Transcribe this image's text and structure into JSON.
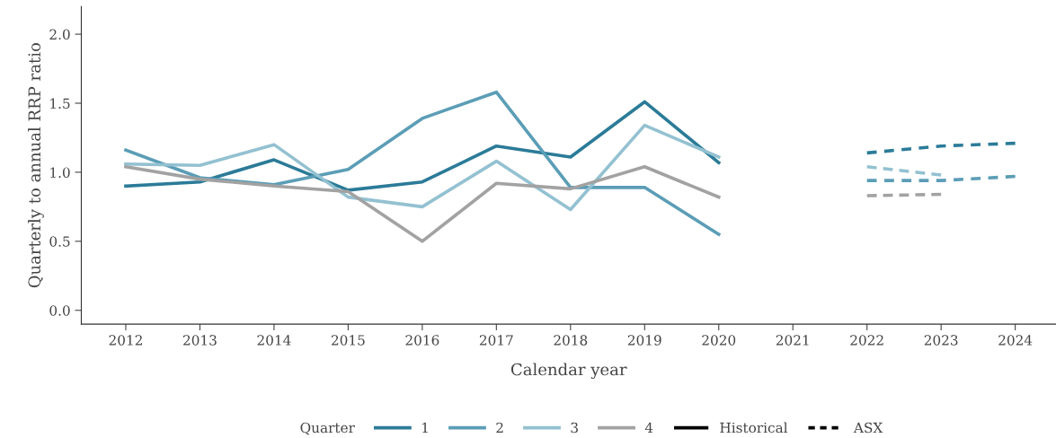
{
  "chart_data": {
    "type": "line",
    "xlabel": "Calendar year",
    "ylabel": "Quarterly to annual RRP ratio",
    "legend_title": "Quarter",
    "series": [
      {
        "name": "1",
        "color": "#2b7b98",
        "line_style": "solid",
        "x": [
          2012,
          2013,
          2014,
          2015,
          2016,
          2017,
          2018,
          2019,
          2020
        ],
        "values": [
          0.9,
          0.93,
          1.09,
          0.87,
          0.93,
          1.19,
          1.11,
          1.51,
          1.07
        ]
      },
      {
        "name": "2",
        "color": "#5b9db6",
        "line_style": "solid",
        "x": [
          2012,
          2013,
          2014,
          2015,
          2016,
          2017,
          2018,
          2019,
          2020
        ],
        "values": [
          1.16,
          0.96,
          0.91,
          1.02,
          1.39,
          1.58,
          0.89,
          0.89,
          0.55
        ]
      },
      {
        "name": "3",
        "color": "#93c1d1",
        "line_style": "solid",
        "x": [
          2012,
          2013,
          2014,
          2015,
          2016,
          2017,
          2018,
          2019,
          2020
        ],
        "values": [
          1.06,
          1.05,
          1.2,
          0.82,
          0.75,
          1.08,
          0.73,
          1.34,
          1.11
        ]
      },
      {
        "name": "4",
        "color": "#a2a2a2",
        "line_style": "solid",
        "x": [
          2012,
          2013,
          2014,
          2015,
          2016,
          2017,
          2018,
          2019,
          2020
        ],
        "values": [
          1.04,
          0.95,
          0.9,
          0.86,
          0.5,
          0.92,
          0.88,
          1.04,
          0.82
        ]
      },
      {
        "color": "#2b7b98",
        "line_style": "dashed",
        "x": [
          2022,
          2023,
          2024
        ],
        "values": [
          1.14,
          1.19,
          1.21
        ]
      },
      {
        "color": "#5b9db6",
        "line_style": "dashed",
        "x": [
          2022,
          2023,
          2024
        ],
        "values": [
          0.94,
          0.94,
          0.97
        ]
      },
      {
        "color": "#93c1d1",
        "line_style": "dashed",
        "x": [
          2022,
          2023
        ],
        "values": [
          1.04,
          0.98
        ]
      },
      {
        "color": "#a2a2a2",
        "line_style": "dashed",
        "x": [
          2022,
          2023
        ],
        "values": [
          0.83,
          0.84
        ]
      }
    ],
    "annotations": [
      "Historical",
      "ASX"
    ],
    "xlim": [
      2011.4,
      2024.55
    ],
    "xticks": [
      2012,
      2013,
      2014,
      2015,
      2016,
      2017,
      2018,
      2019,
      2020,
      2021,
      2022,
      2023,
      2024
    ],
    "ylim": [
      -0.1,
      2.2
    ],
    "yticks": [
      {
        "value": 0,
        "label": "0.0"
      },
      {
        "value": 0.5,
        "label": "0.5"
      },
      {
        "value": 1,
        "label": "1.0"
      },
      {
        "value": 1.5,
        "label": "1.5"
      },
      {
        "value": 2,
        "label": "2.0"
      }
    ],
    "grid": false,
    "legend": "bottom",
    "marker": "none"
  }
}
